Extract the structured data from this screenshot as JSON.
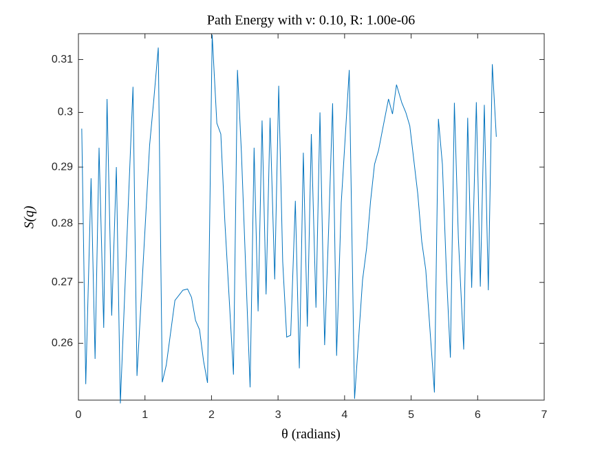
{
  "chart_data": {
    "type": "line",
    "title": "Path Energy with ν: 0.10, R: 1.00e-06",
    "xlabel": "θ (radians)",
    "ylabel": "S(q)",
    "yscale": "log",
    "grid": false,
    "xlim": [
      0,
      7
    ],
    "xticks": [
      0,
      1,
      2,
      3,
      4,
      5,
      6,
      7
    ],
    "ylim": [
      0.251,
      0.315
    ],
    "yticks": [
      0.26,
      0.27,
      0.28,
      0.29,
      0.3,
      0.31
    ],
    "x": [
      0.05,
      0.11,
      0.19,
      0.25,
      0.31,
      0.38,
      0.43,
      0.5,
      0.57,
      0.63,
      0.82,
      0.88,
      1.07,
      1.13,
      1.2,
      1.26,
      1.32,
      1.45,
      1.57,
      1.64,
      1.7,
      1.76,
      1.82,
      1.88,
      1.94,
      2.01,
      2.08,
      2.14,
      2.2,
      2.33,
      2.39,
      2.45,
      2.58,
      2.64,
      2.7,
      2.76,
      2.82,
      2.88,
      2.95,
      3.01,
      3.07,
      3.13,
      3.19,
      3.26,
      3.32,
      3.38,
      3.44,
      3.5,
      3.57,
      3.63,
      3.7,
      3.76,
      3.82,
      3.88,
      3.95,
      4.01,
      4.07,
      4.15,
      4.21,
      4.27,
      4.33,
      4.39,
      4.45,
      4.51,
      4.57,
      4.66,
      4.72,
      4.78,
      4.86,
      4.92,
      4.98,
      5.04,
      5.1,
      5.16,
      5.22,
      5.35,
      5.41,
      5.47,
      5.53,
      5.59,
      5.65,
      5.71,
      5.79,
      5.85,
      5.91,
      5.98,
      6.04,
      6.1,
      6.16,
      6.22,
      6.28
    ],
    "series": [
      {
        "name": "S(q)",
        "color": "#0072BD",
        "values": [
          0.297,
          0.2535,
          0.288,
          0.2575,
          0.2935,
          0.2625,
          0.3025,
          0.2645,
          0.29,
          0.2505,
          0.3048,
          0.2548,
          0.294,
          0.302,
          0.3123,
          0.2538,
          0.2565,
          0.267,
          0.2687,
          0.2689,
          0.2675,
          0.2637,
          0.2622,
          0.2572,
          0.2537,
          0.3148,
          0.298,
          0.296,
          0.2805,
          0.255,
          0.308,
          0.2925,
          0.253,
          0.2935,
          0.2652,
          0.2985,
          0.268,
          0.299,
          0.2705,
          0.305,
          0.2735,
          0.261,
          0.2613,
          0.284,
          0.256,
          0.2926,
          0.2627,
          0.296,
          0.2658,
          0.3,
          0.2597,
          0.279,
          0.3017,
          0.258,
          0.2837,
          0.2955,
          0.308,
          0.2512,
          0.2606,
          0.2704,
          0.2757,
          0.2839,
          0.2905,
          0.293,
          0.2968,
          0.3025,
          0.2997,
          0.3052,
          0.3018,
          0.3,
          0.2975,
          0.2913,
          0.2852,
          0.2769,
          0.2721,
          0.2522,
          0.2988,
          0.2905,
          0.2718,
          0.2577,
          0.3018,
          0.2775,
          0.259,
          0.299,
          0.2691,
          0.3019,
          0.2693,
          0.3014,
          0.2687,
          0.3091,
          0.2955
        ]
      }
    ]
  }
}
